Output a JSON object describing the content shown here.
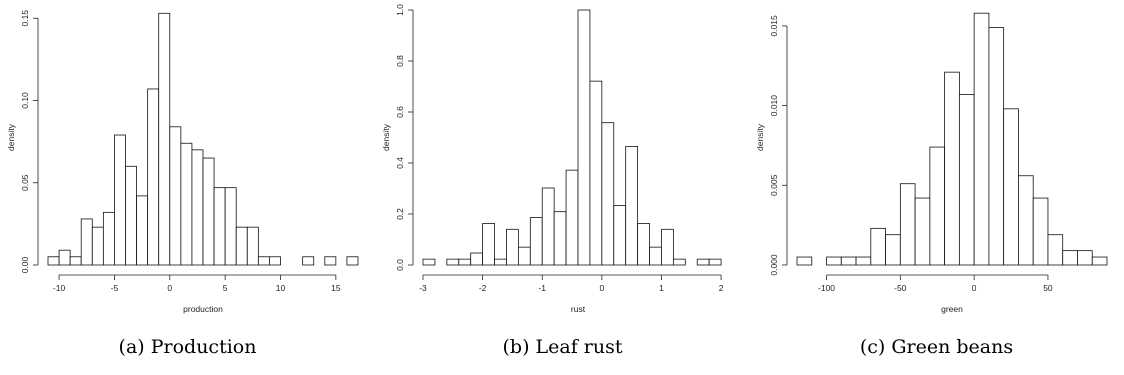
{
  "chart_data": [
    {
      "type": "bar",
      "caption": "(a) Production",
      "xlabel": "production",
      "ylabel": "density",
      "xlim": [
        -11,
        17
      ],
      "ylim": [
        0,
        0.155
      ],
      "xticks": [
        -10,
        -5,
        0,
        5,
        10,
        15
      ],
      "xtick_labels": [
        "-10",
        "-5",
        "0",
        "5",
        "10",
        "15"
      ],
      "yticks": [
        0,
        0.05,
        0.1,
        0.15
      ],
      "ytick_labels": [
        "0.00",
        "0.05",
        "0.10",
        "0.15"
      ],
      "bin_width": 1,
      "bin_start": -11,
      "values": [
        0.005,
        0.009,
        0.005,
        0.028,
        0.023,
        0.032,
        0.079,
        0.06,
        0.042,
        0.107,
        0.153,
        0.084,
        0.074,
        0.07,
        0.065,
        0.047,
        0.047,
        0.023,
        0.023,
        0.005,
        0.005,
        0,
        0,
        0.005,
        0,
        0.005,
        0,
        0.005
      ]
    },
    {
      "type": "bar",
      "caption": "(b) Leaf rust",
      "xlabel": "rust",
      "ylabel": "density",
      "xlim": [
        -3,
        2.2
      ],
      "ylim": [
        0,
        1.0
      ],
      "xticks": [
        -3,
        -2,
        -1,
        0,
        1,
        2
      ],
      "xtick_labels": [
        "-3",
        "-2",
        "-1",
        "0",
        "1",
        "2"
      ],
      "yticks": [
        0,
        0.2,
        0.4,
        0.6,
        0.8,
        1.0
      ],
      "ytick_labels": [
        "0.0",
        "0.2",
        "0.4",
        "0.6",
        "0.8",
        "1.0"
      ],
      "bin_width": 0.2,
      "bin_start": -3.0,
      "values": [
        0.023,
        0,
        0.023,
        0.023,
        0.047,
        0.163,
        0.023,
        0.14,
        0.07,
        0.186,
        0.302,
        0.209,
        0.372,
        1.0,
        0.721,
        0.558,
        0.233,
        0.465,
        0.163,
        0.07,
        0.14,
        0.023,
        0,
        0.023,
        0.023
      ]
    },
    {
      "type": "bar",
      "caption": "(c) Green beans",
      "xlabel": "green",
      "ylabel": "density",
      "xlim": [
        -120,
        90
      ],
      "ylim": [
        0,
        0.016
      ],
      "xticks": [
        -100,
        -50,
        0,
        50
      ],
      "xtick_labels": [
        "-100",
        "-50",
        "0",
        "50"
      ],
      "yticks": [
        0,
        0.005,
        0.01,
        0.015
      ],
      "ytick_labels": [
        "0.000",
        "0.005",
        "0.010",
        "0.015"
      ],
      "bin_width": 10,
      "bin_start": -120,
      "values": [
        0.0005,
        0,
        0.0005,
        0.0005,
        0.0005,
        0.0023,
        0.0019,
        0.0051,
        0.0042,
        0.0074,
        0.0121,
        0.0107,
        0.0158,
        0.0149,
        0.0098,
        0.0056,
        0.0042,
        0.0019,
        0.0009,
        0.0009,
        0.0005
      ]
    }
  ]
}
